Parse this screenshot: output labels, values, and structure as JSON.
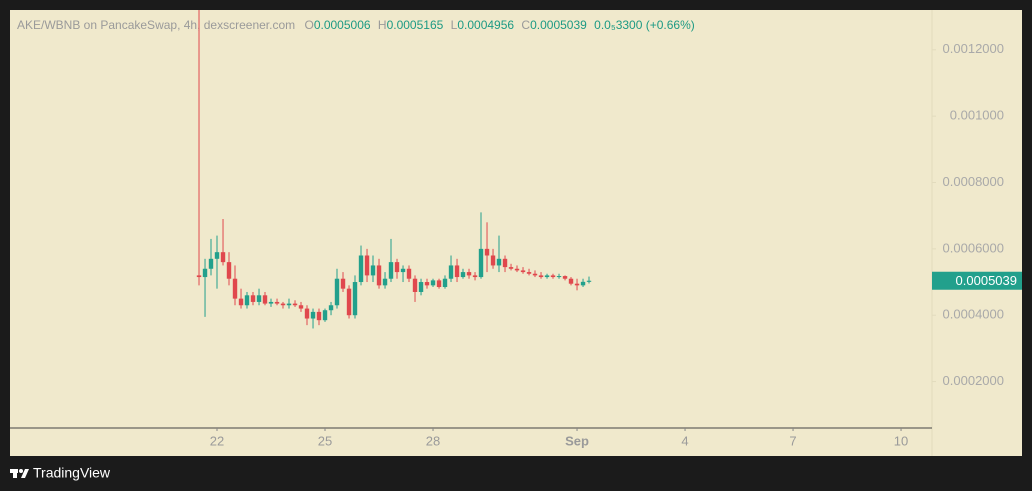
{
  "header": {
    "pair": "AKE/WBNB on PancakeSwap, 4h, dexscreener.com",
    "ohlc": [
      {
        "label": "O",
        "value": "0.0005006"
      },
      {
        "label": "H",
        "value": "0.0005165"
      },
      {
        "label": "L",
        "value": "0.0004956"
      },
      {
        "label": "C",
        "value": "0.0005039"
      }
    ],
    "change": "0.0₅3300 (+0.66%)"
  },
  "footer": {
    "brand": "TradingView"
  },
  "chart_data": {
    "type": "candlestick",
    "x": [
      21.5,
      21.667,
      21.833,
      22,
      22.167,
      22.333,
      22.5,
      22.667,
      22.833,
      23,
      23.167,
      23.333,
      23.5,
      23.667,
      23.833,
      24,
      24.167,
      24.333,
      24.5,
      24.667,
      24.833,
      25,
      25.167,
      25.333,
      25.5,
      25.667,
      25.833,
      26,
      26.167,
      26.333,
      26.5,
      26.667,
      26.833,
      27,
      27.167,
      27.333,
      27.5,
      27.667,
      27.833,
      28,
      28.167,
      28.333,
      28.5,
      28.667,
      28.833,
      29,
      29.167,
      29.333,
      29.5,
      29.667,
      29.833,
      30,
      30.167,
      30.333,
      30.5,
      30.667,
      30.833,
      31,
      31.167,
      31.333,
      31.5,
      31.667,
      31.833,
      32,
      32.167,
      32.333
    ],
    "open": [
      0.00052,
      0.000515,
      0.00054,
      0.00057,
      0.00059,
      0.00056,
      0.00051,
      0.00045,
      0.00043,
      0.00046,
      0.00044,
      0.00046,
      0.000435,
      0.00044,
      0.000435,
      0.00043,
      0.000435,
      0.00043,
      0.00042,
      0.00039,
      0.00041,
      0.000385,
      0.000415,
      0.00043,
      0.00051,
      0.00048,
      0.0004,
      0.0005,
      0.00058,
      0.00052,
      0.00055,
      0.00049,
      0.00051,
      0.00056,
      0.00053,
      0.00054,
      0.00051,
      0.00047,
      0.0005,
      0.00049,
      0.000505,
      0.000485,
      0.00051,
      0.00055,
      0.000515,
      0.00053,
      0.00052,
      0.000515,
      0.0006,
      0.00058,
      0.00055,
      0.00057,
      0.000545,
      0.00054,
      0.000535,
      0.00053,
      0.000525,
      0.00052,
      0.000515,
      0.00052,
      0.000515,
      0.000518,
      0.00051,
      0.000495,
      0.00049,
      0.0005006
    ],
    "high": [
      0.00132,
      0.00057,
      0.00063,
      0.00064,
      0.00069,
      0.00059,
      0.00055,
      0.00048,
      0.00047,
      0.00047,
      0.00048,
      0.00047,
      0.00045,
      0.00045,
      0.00044,
      0.00045,
      0.000445,
      0.00044,
      0.00043,
      0.00042,
      0.00042,
      0.00042,
      0.00044,
      0.00054,
      0.00053,
      0.00049,
      0.00052,
      0.00061,
      0.0006,
      0.00058,
      0.00057,
      0.00053,
      0.00063,
      0.00057,
      0.00055,
      0.00055,
      0.00052,
      0.00051,
      0.00051,
      0.00051,
      0.00051,
      0.00052,
      0.00058,
      0.00057,
      0.00054,
      0.00054,
      0.00053,
      0.00071,
      0.00068,
      0.0006,
      0.00064,
      0.00058,
      0.000555,
      0.00055,
      0.000545,
      0.00054,
      0.000535,
      0.00053,
      0.000525,
      0.000525,
      0.000525,
      0.00052,
      0.000515,
      0.00051,
      0.00051,
      0.0005165
    ],
    "low": [
      0.00049,
      0.000395,
      0.00052,
      0.00048,
      0.00055,
      0.00049,
      0.00043,
      0.00042,
      0.00042,
      0.00043,
      0.00043,
      0.00043,
      0.000425,
      0.00043,
      0.00042,
      0.00042,
      0.000425,
      0.00041,
      0.00037,
      0.00036,
      0.00037,
      0.00038,
      0.0004,
      0.00042,
      0.00047,
      0.00039,
      0.00039,
      0.00049,
      0.0005,
      0.0005,
      0.00048,
      0.00048,
      0.0005,
      0.00051,
      0.0005,
      0.0005,
      0.00044,
      0.00046,
      0.00048,
      0.000485,
      0.00048,
      0.00048,
      0.0005,
      0.0005,
      0.00051,
      0.00051,
      0.000505,
      0.00051,
      0.00053,
      0.00054,
      0.00053,
      0.00053,
      0.000535,
      0.00053,
      0.000525,
      0.00052,
      0.000515,
      0.00051,
      0.00051,
      0.00051,
      0.00051,
      0.000505,
      0.00049,
      0.000475,
      0.000485,
      0.0004956
    ],
    "close": [
      0.000515,
      0.00054,
      0.00057,
      0.00059,
      0.00056,
      0.00051,
      0.00045,
      0.00043,
      0.00046,
      0.00044,
      0.00046,
      0.000435,
      0.00044,
      0.000435,
      0.00043,
      0.000435,
      0.00043,
      0.00042,
      0.00039,
      0.00041,
      0.000385,
      0.000415,
      0.00043,
      0.00051,
      0.00048,
      0.0004,
      0.0005,
      0.00058,
      0.00052,
      0.00055,
      0.00049,
      0.00051,
      0.00056,
      0.00053,
      0.00054,
      0.00051,
      0.00047,
      0.0005,
      0.00049,
      0.000505,
      0.000485,
      0.00051,
      0.00055,
      0.000515,
      0.00053,
      0.00052,
      0.000515,
      0.0006,
      0.00058,
      0.00055,
      0.00057,
      0.000545,
      0.00054,
      0.000535,
      0.00053,
      0.000525,
      0.00052,
      0.000515,
      0.00052,
      0.000515,
      0.000518,
      0.00051,
      0.000495,
      0.00049,
      0.0005006,
      0.0005039
    ],
    "up_color": "#22a08c",
    "down_color": "#e0484d",
    "xlim": [
      16.25,
      41.86
    ],
    "xticks": [
      22,
      25,
      28,
      {
        "value": 32,
        "label": "Sep"
      },
      {
        "value": 35,
        "label": "4"
      },
      {
        "value": 38,
        "label": "7"
      },
      {
        "value": 41,
        "label": "10"
      }
    ],
    "ylim": [
      6e-05,
      0.00132
    ],
    "yticks": [
      {
        "value": 0.0002,
        "label": "0.0002000"
      },
      {
        "value": 0.0004,
        "label": "0.0004000"
      },
      {
        "value": 0.0006,
        "label": "0.0006000"
      },
      {
        "value": 0.0008,
        "label": "0.0008000"
      },
      {
        "value": 0.001,
        "label": "0.001000"
      },
      {
        "value": 0.0012,
        "label": "0.0012000"
      }
    ],
    "last_price": 0.0005039,
    "grid": false
  }
}
